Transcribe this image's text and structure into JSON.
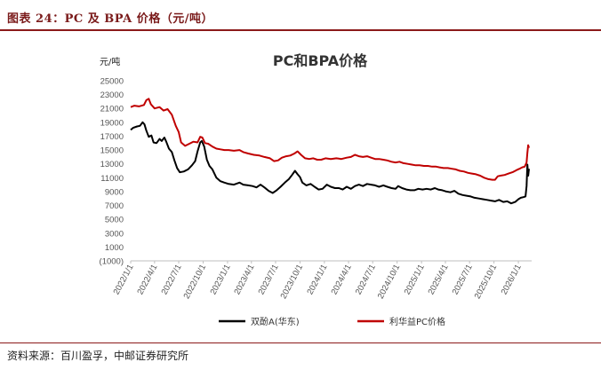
{
  "header": {
    "title": "图表 24：PC 及 BPA 价格（元/吨）"
  },
  "footer": {
    "source": "资料来源：百川盈孚，中邮证券研究所"
  },
  "chart_data": {
    "type": "line",
    "title": "PC和BPA价格",
    "ylabel": "元/吨",
    "xlabel": "",
    "ylim": [
      -1000,
      25000
    ],
    "ytick_labels": [
      "25000",
      "23000",
      "21000",
      "19000",
      "17000",
      "15000",
      "13000",
      "11000",
      "9000",
      "7000",
      "5000",
      "3000",
      "1000",
      "(1000)"
    ],
    "yticks": [
      25000,
      23000,
      21000,
      19000,
      17000,
      15000,
      13000,
      11000,
      9000,
      7000,
      5000,
      3000,
      1000,
      -1000
    ],
    "xtick_labels": [
      "2022/1/1",
      "2022/4/1",
      "2022/7/1",
      "2022/10/1",
      "2023/1/1",
      "2023/4/1",
      "2023/7/1",
      "2023/10/1",
      "2024/1/1",
      "2024/4/1",
      "2024/7/1",
      "2024/10/1",
      "2025/1/1",
      "2025/4/1",
      "2025/7/1",
      "2025/10/1",
      "2026/1/1"
    ],
    "xtick_dates": [
      "2022-01-01",
      "2022-04-01",
      "2022-07-01",
      "2022-10-01",
      "2023-01-01",
      "2023-04-01",
      "2023-07-01",
      "2023-10-01",
      "2024-01-01",
      "2024-04-01",
      "2024-07-01",
      "2024-10-01",
      "2025-01-01",
      "2025-04-01",
      "2025-07-01",
      "2025-10-01",
      "2026-01-01"
    ],
    "xlim": [
      "2022-01-01",
      "2026-02-20"
    ],
    "grid": false,
    "legend_position": "bottom",
    "series": [
      {
        "name": "双酚A(华东)",
        "color": "#000000",
        "points": [
          [
            "2022-01-01",
            17900
          ],
          [
            "2022-01-10",
            18200
          ],
          [
            "2022-01-25",
            18400
          ],
          [
            "2022-02-05",
            18500
          ],
          [
            "2022-02-15",
            19000
          ],
          [
            "2022-02-22",
            18700
          ],
          [
            "2022-03-01",
            17800
          ],
          [
            "2022-03-10",
            16900
          ],
          [
            "2022-03-20",
            17100
          ],
          [
            "2022-03-28",
            16100
          ],
          [
            "2022-04-08",
            16000
          ],
          [
            "2022-04-20",
            16600
          ],
          [
            "2022-04-28",
            16300
          ],
          [
            "2022-05-08",
            16800
          ],
          [
            "2022-05-15",
            16200
          ],
          [
            "2022-05-25",
            15200
          ],
          [
            "2022-06-05",
            14700
          ],
          [
            "2022-06-15",
            13500
          ],
          [
            "2022-06-25",
            12400
          ],
          [
            "2022-07-05",
            11800
          ],
          [
            "2022-07-20",
            11900
          ],
          [
            "2022-08-05",
            12200
          ],
          [
            "2022-08-20",
            12800
          ],
          [
            "2022-09-01",
            13400
          ],
          [
            "2022-09-10",
            14800
          ],
          [
            "2022-09-20",
            16100
          ],
          [
            "2022-09-26",
            16300
          ],
          [
            "2022-10-05",
            15500
          ],
          [
            "2022-10-15",
            13600
          ],
          [
            "2022-10-25",
            12700
          ],
          [
            "2022-11-05",
            12200
          ],
          [
            "2022-11-20",
            11000
          ],
          [
            "2022-12-05",
            10500
          ],
          [
            "2022-12-20",
            10300
          ],
          [
            "2023-01-05",
            10100
          ],
          [
            "2023-01-25",
            10000
          ],
          [
            "2023-02-15",
            10300
          ],
          [
            "2023-03-01",
            10000
          ],
          [
            "2023-03-20",
            9900
          ],
          [
            "2023-04-05",
            9800
          ],
          [
            "2023-04-20",
            9600
          ],
          [
            "2023-05-05",
            10000
          ],
          [
            "2023-05-20",
            9600
          ],
          [
            "2023-06-05",
            9100
          ],
          [
            "2023-06-20",
            8800
          ],
          [
            "2023-07-05",
            9200
          ],
          [
            "2023-07-20",
            9700
          ],
          [
            "2023-08-05",
            10300
          ],
          [
            "2023-08-20",
            10800
          ],
          [
            "2023-09-01",
            11400
          ],
          [
            "2023-09-12",
            12000
          ],
          [
            "2023-09-22",
            11500
          ],
          [
            "2023-10-01",
            11100
          ],
          [
            "2023-10-10",
            10300
          ],
          [
            "2023-10-25",
            9900
          ],
          [
            "2023-11-10",
            10100
          ],
          [
            "2023-11-25",
            9700
          ],
          [
            "2023-12-10",
            9300
          ],
          [
            "2023-12-25",
            9400
          ],
          [
            "2024-01-10",
            10000
          ],
          [
            "2024-01-25",
            9700
          ],
          [
            "2024-02-10",
            9500
          ],
          [
            "2024-02-25",
            9500
          ],
          [
            "2024-03-10",
            9300
          ],
          [
            "2024-03-25",
            9700
          ],
          [
            "2024-04-10",
            9400
          ],
          [
            "2024-04-25",
            9800
          ],
          [
            "2024-05-10",
            10000
          ],
          [
            "2024-05-25",
            9800
          ],
          [
            "2024-06-10",
            10100
          ],
          [
            "2024-06-25",
            10000
          ],
          [
            "2024-07-10",
            9900
          ],
          [
            "2024-07-25",
            9700
          ],
          [
            "2024-08-10",
            9900
          ],
          [
            "2024-08-25",
            9700
          ],
          [
            "2024-09-10",
            9500
          ],
          [
            "2024-09-25",
            9400
          ],
          [
            "2024-10-05",
            9800
          ],
          [
            "2024-10-20",
            9500
          ],
          [
            "2024-11-05",
            9300
          ],
          [
            "2024-11-20",
            9200
          ],
          [
            "2024-12-05",
            9200
          ],
          [
            "2024-12-20",
            9400
          ],
          [
            "2025-01-05",
            9300
          ],
          [
            "2025-01-20",
            9400
          ],
          [
            "2025-02-05",
            9300
          ],
          [
            "2025-02-20",
            9500
          ],
          [
            "2025-03-05",
            9300
          ],
          [
            "2025-03-20",
            9200
          ],
          [
            "2025-04-05",
            9000
          ],
          [
            "2025-04-20",
            8900
          ],
          [
            "2025-05-05",
            9100
          ],
          [
            "2025-05-20",
            8700
          ],
          [
            "2025-06-05",
            8500
          ],
          [
            "2025-06-20",
            8400
          ],
          [
            "2025-07-05",
            8300
          ],
          [
            "2025-07-20",
            8100
          ],
          [
            "2025-08-05",
            8000
          ],
          [
            "2025-08-20",
            7900
          ],
          [
            "2025-09-05",
            7800
          ],
          [
            "2025-09-20",
            7700
          ],
          [
            "2025-10-05",
            7600
          ],
          [
            "2025-10-20",
            7800
          ],
          [
            "2025-11-05",
            7500
          ],
          [
            "2025-11-20",
            7600
          ],
          [
            "2025-12-05",
            7300
          ],
          [
            "2025-12-20",
            7500
          ],
          [
            "2026-01-01",
            7900
          ],
          [
            "2026-01-10",
            8100
          ],
          [
            "2026-01-20",
            8200
          ],
          [
            "2026-01-28",
            8300
          ],
          [
            "2026-02-01",
            9800
          ],
          [
            "2026-02-04",
            12900
          ],
          [
            "2026-02-07",
            11300
          ],
          [
            "2026-02-10",
            12300
          ]
        ]
      },
      {
        "name": "利华益PC价格",
        "color": "#c00000",
        "points": [
          [
            "2022-01-01",
            21200
          ],
          [
            "2022-01-15",
            21400
          ],
          [
            "2022-02-01",
            21300
          ],
          [
            "2022-02-20",
            21500
          ],
          [
            "2022-03-01",
            22200
          ],
          [
            "2022-03-10",
            22400
          ],
          [
            "2022-03-18",
            21600
          ],
          [
            "2022-04-01",
            21000
          ],
          [
            "2022-04-20",
            21200
          ],
          [
            "2022-05-05",
            20700
          ],
          [
            "2022-05-20",
            20900
          ],
          [
            "2022-06-05",
            20100
          ],
          [
            "2022-06-20",
            18500
          ],
          [
            "2022-07-01",
            17600
          ],
          [
            "2022-07-10",
            16100
          ],
          [
            "2022-07-25",
            15600
          ],
          [
            "2022-08-10",
            15900
          ],
          [
            "2022-08-25",
            16200
          ],
          [
            "2022-09-10",
            16100
          ],
          [
            "2022-09-20",
            16900
          ],
          [
            "2022-09-28",
            16800
          ],
          [
            "2022-10-08",
            16000
          ],
          [
            "2022-10-20",
            15900
          ],
          [
            "2022-11-05",
            15500
          ],
          [
            "2022-11-20",
            15200
          ],
          [
            "2022-12-05",
            15100
          ],
          [
            "2022-12-20",
            15000
          ],
          [
            "2023-01-05",
            15000
          ],
          [
            "2023-01-25",
            14900
          ],
          [
            "2023-02-15",
            15000
          ],
          [
            "2023-03-01",
            14700
          ],
          [
            "2023-03-20",
            14500
          ],
          [
            "2023-04-10",
            14300
          ],
          [
            "2023-05-01",
            14200
          ],
          [
            "2023-05-20",
            14000
          ],
          [
            "2023-06-10",
            13800
          ],
          [
            "2023-06-25",
            13400
          ],
          [
            "2023-07-10",
            13500
          ],
          [
            "2023-07-25",
            13900
          ],
          [
            "2023-08-10",
            14100
          ],
          [
            "2023-08-25",
            14200
          ],
          [
            "2023-09-10",
            14500
          ],
          [
            "2023-09-22",
            14800
          ],
          [
            "2023-10-05",
            14300
          ],
          [
            "2023-10-20",
            13800
          ],
          [
            "2023-11-05",
            13700
          ],
          [
            "2023-11-20",
            13800
          ],
          [
            "2023-12-05",
            13600
          ],
          [
            "2023-12-20",
            13600
          ],
          [
            "2024-01-05",
            13800
          ],
          [
            "2024-01-25",
            13700
          ],
          [
            "2024-02-15",
            13800
          ],
          [
            "2024-03-05",
            13700
          ],
          [
            "2024-03-25",
            13900
          ],
          [
            "2024-04-10",
            14000
          ],
          [
            "2024-04-25",
            14300
          ],
          [
            "2024-05-10",
            14100
          ],
          [
            "2024-05-25",
            14000
          ],
          [
            "2024-06-10",
            14100
          ],
          [
            "2024-06-25",
            13900
          ],
          [
            "2024-07-10",
            13700
          ],
          [
            "2024-07-25",
            13700
          ],
          [
            "2024-08-10",
            13600
          ],
          [
            "2024-08-25",
            13500
          ],
          [
            "2024-09-10",
            13300
          ],
          [
            "2024-09-25",
            13200
          ],
          [
            "2024-10-10",
            13300
          ],
          [
            "2024-10-25",
            13100
          ],
          [
            "2024-11-10",
            13000
          ],
          [
            "2024-11-25",
            12900
          ],
          [
            "2024-12-10",
            12800
          ],
          [
            "2024-12-25",
            12800
          ],
          [
            "2025-01-10",
            12700
          ],
          [
            "2025-01-25",
            12700
          ],
          [
            "2025-02-10",
            12600
          ],
          [
            "2025-02-25",
            12600
          ],
          [
            "2025-03-10",
            12500
          ],
          [
            "2025-03-25",
            12400
          ],
          [
            "2025-04-10",
            12400
          ],
          [
            "2025-04-25",
            12300
          ],
          [
            "2025-05-10",
            12200
          ],
          [
            "2025-05-25",
            12000
          ],
          [
            "2025-06-10",
            11900
          ],
          [
            "2025-06-25",
            11700
          ],
          [
            "2025-07-10",
            11600
          ],
          [
            "2025-07-25",
            11500
          ],
          [
            "2025-08-10",
            11300
          ],
          [
            "2025-08-25",
            11000
          ],
          [
            "2025-09-10",
            10800
          ],
          [
            "2025-09-25",
            10700
          ],
          [
            "2025-10-05",
            10700
          ],
          [
            "2025-10-15",
            11200
          ],
          [
            "2025-10-25",
            11300
          ],
          [
            "2025-11-10",
            11400
          ],
          [
            "2025-11-25",
            11600
          ],
          [
            "2025-12-10",
            11800
          ],
          [
            "2025-12-25",
            12100
          ],
          [
            "2026-01-05",
            12300
          ],
          [
            "2026-01-15",
            12500
          ],
          [
            "2026-01-25",
            12600
          ],
          [
            "2026-02-01",
            13200
          ],
          [
            "2026-02-04",
            14600
          ],
          [
            "2026-02-07",
            15700
          ],
          [
            "2026-02-10",
            15300
          ]
        ]
      }
    ]
  }
}
